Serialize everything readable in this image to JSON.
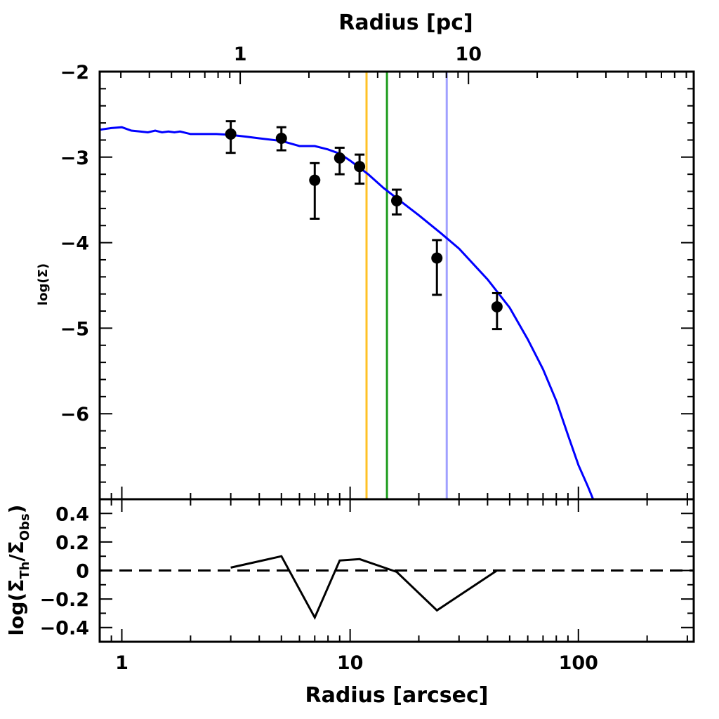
{
  "chart_data": [
    {
      "panel": "main",
      "type": "scatter",
      "xlabel": "Radius [arcsec]",
      "x2label": "Radius [pc]",
      "ylabel": "log(Σ)",
      "xscale": "log",
      "xlim": [
        0.8,
        320
      ],
      "ylim": [
        -7,
        -2
      ],
      "x_ticks": [
        1,
        10,
        100
      ],
      "x_tick_labels": [
        "1",
        "10",
        "100"
      ],
      "y_ticks": [
        -2,
        -3,
        -4,
        -5,
        -6
      ],
      "y_tick_labels": [
        "−2",
        "−3",
        "−4",
        "−5",
        "−6"
      ],
      "x2_ticks_arcsec": [
        3.3,
        33
      ],
      "x2_tick_labels": [
        "1",
        "10"
      ],
      "observed": {
        "x": [
          3,
          5,
          7,
          9,
          11,
          16,
          24,
          44
        ],
        "y": [
          -2.73,
          -2.78,
          -3.27,
          -3.01,
          -3.11,
          -3.51,
          -4.18,
          -4.75
        ],
        "y_err_low": [
          0.22,
          0.14,
          0.45,
          0.19,
          0.2,
          0.16,
          0.43,
          0.26
        ],
        "y_err_high": [
          0.15,
          0.13,
          0.2,
          0.12,
          0.14,
          0.13,
          0.21,
          0.16
        ],
        "color": "#000000"
      },
      "model": {
        "x": [
          0.8,
          0.9,
          1.0,
          1.1,
          1.2,
          1.3,
          1.4,
          1.5,
          1.6,
          1.7,
          1.8,
          2.0,
          2.3,
          2.6,
          3.0,
          3.5,
          4.0,
          5.0,
          6.0,
          7.0,
          8.0,
          9.0,
          10.0,
          12.0,
          14.0,
          16.0,
          20.0,
          25.0,
          30.0,
          40.0,
          50.0,
          60.0,
          70.0,
          80.0,
          90.0,
          100.0,
          110.0,
          116.0
        ],
        "y": [
          -2.68,
          -2.66,
          -2.65,
          -2.69,
          -2.7,
          -2.71,
          -2.69,
          -2.71,
          -2.7,
          -2.71,
          -2.7,
          -2.73,
          -2.73,
          -2.73,
          -2.74,
          -2.76,
          -2.78,
          -2.81,
          -2.87,
          -2.87,
          -2.91,
          -2.96,
          -3.04,
          -3.2,
          -3.36,
          -3.48,
          -3.68,
          -3.89,
          -4.07,
          -4.43,
          -4.76,
          -5.13,
          -5.48,
          -5.85,
          -6.25,
          -6.6,
          -6.85,
          -7.0
        ],
        "color": "#0000ff"
      },
      "vertical_lines": [
        {
          "x": 11.8,
          "color": "#ffc125"
        },
        {
          "x": 14.5,
          "color": "#1e9c1e"
        },
        {
          "x": 26.5,
          "color": "#a0a0ff"
        }
      ]
    },
    {
      "panel": "residual",
      "type": "line",
      "xlabel": "Radius [arcsec]",
      "ylabel": "log(Σ_Th/Σ_Obs)",
      "ylabel_parts": {
        "prefix": "log(Σ",
        "sub1": "Th",
        "mid": "/Σ",
        "sub2": "Obs",
        "suffix": ")"
      },
      "xscale": "log",
      "xlim": [
        0.8,
        320
      ],
      "ylim": [
        -0.5,
        0.5
      ],
      "y_ticks": [
        0.4,
        0.2,
        0,
        -0.2,
        -0.4
      ],
      "y_tick_labels": [
        "0.4",
        "0.2",
        "0",
        "−0.2",
        "−0.4"
      ],
      "x": [
        3,
        5,
        7,
        9,
        11,
        16,
        24,
        44
      ],
      "y": [
        0.02,
        0.1,
        -0.33,
        0.07,
        0.08,
        -0.01,
        -0.28,
        0.0
      ],
      "zero_line": 0,
      "color": "#000000"
    }
  ]
}
